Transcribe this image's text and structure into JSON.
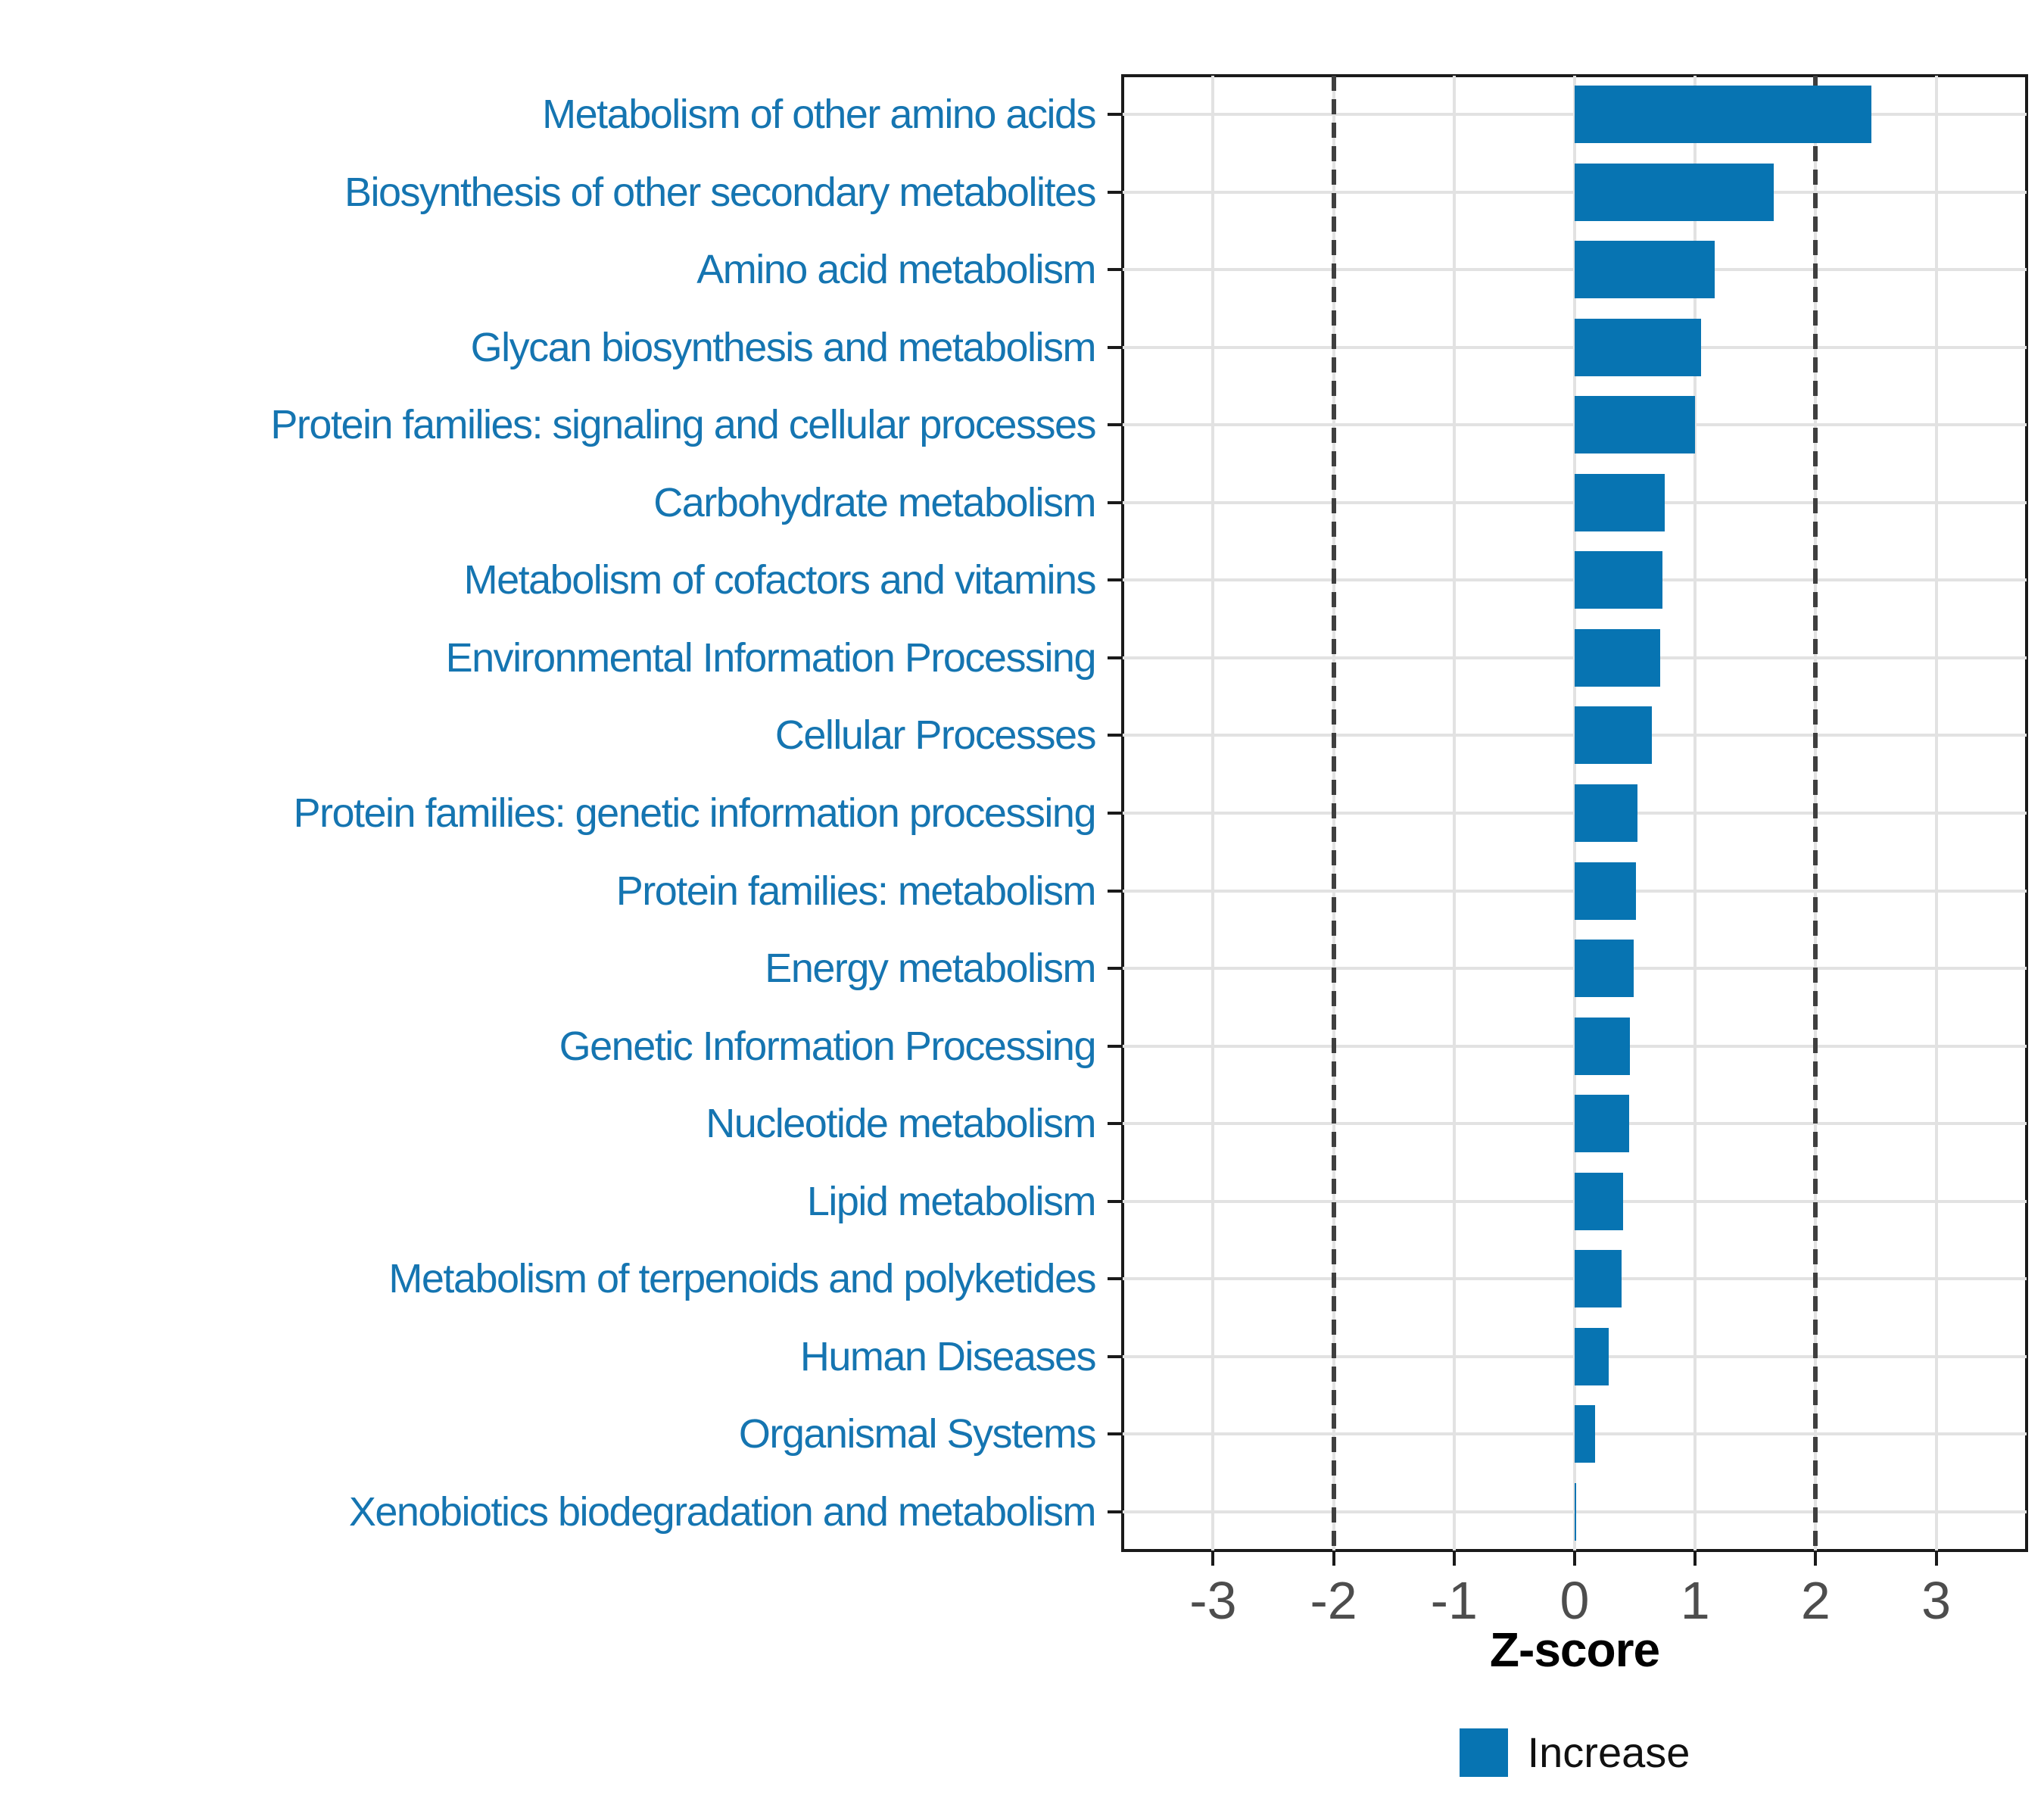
{
  "chart_data": {
    "type": "bar",
    "orientation": "horizontal",
    "xlabel": "Z-score",
    "categories": [
      "Metabolism of other amino acids",
      "Biosynthesis of other secondary metabolites",
      "Amino acid metabolism",
      "Glycan biosynthesis and metabolism",
      "Protein families: signaling and cellular processes",
      "Carbohydrate metabolism",
      "Metabolism of cofactors and vitamins",
      "Environmental Information Processing",
      "Cellular Processes",
      "Protein families: genetic information processing",
      "Protein families: metabolism",
      "Energy metabolism",
      "Genetic Information Processing",
      "Nucleotide metabolism",
      "Lipid metabolism",
      "Metabolism of terpenoids and polyketides",
      "Human Diseases",
      "Organismal Systems",
      "Xenobiotics biodegradation and metabolism"
    ],
    "values": [
      2.46,
      1.65,
      1.16,
      1.05,
      1.0,
      0.75,
      0.73,
      0.71,
      0.64,
      0.52,
      0.51,
      0.49,
      0.46,
      0.45,
      0.4,
      0.39,
      0.28,
      0.17,
      0.015
    ],
    "xlim": [
      -3.75,
      3.75
    ],
    "xticks": [
      -3,
      -2,
      -1,
      0,
      1,
      2,
      3
    ],
    "reference_lines": [
      -2,
      2
    ],
    "grid": true,
    "legend": {
      "position": "bottom",
      "entries": [
        {
          "label": "Increase",
          "color": "#0774b2"
        }
      ]
    },
    "colors": {
      "bar": "#0774b2",
      "category_label": "#1575b1",
      "tick_label": "#4d4d4d",
      "axis_title": "#000000",
      "gridline": "#e2e2e2",
      "reference_line": "#3f3f3f",
      "panel_border": "#1a1a1a"
    }
  }
}
